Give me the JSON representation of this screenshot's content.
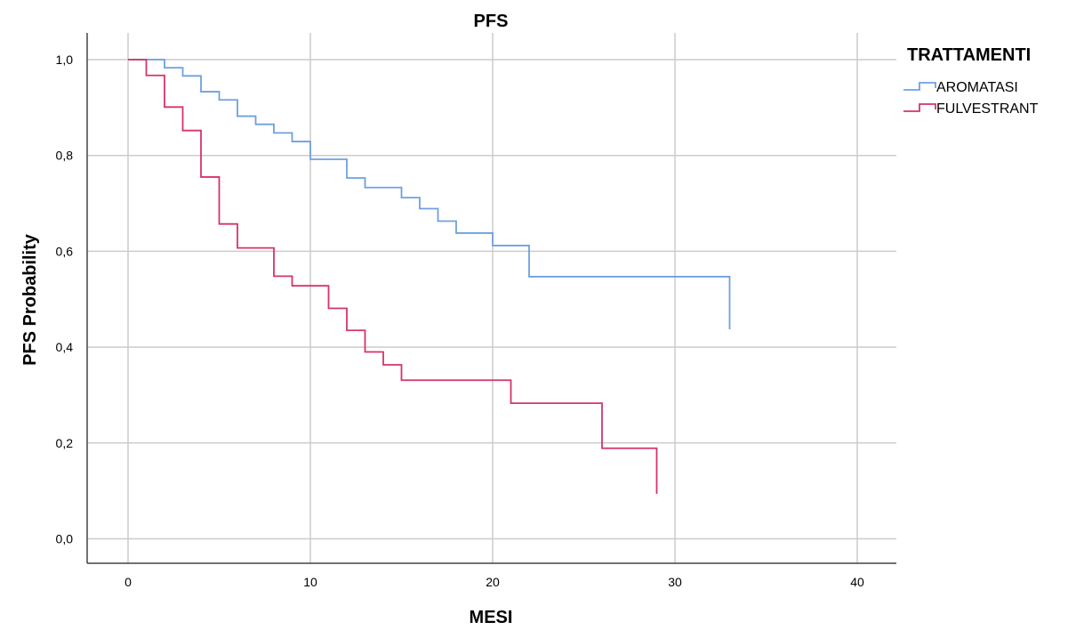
{
  "chart_data": {
    "type": "line",
    "step": true,
    "title": "PFS",
    "xlabel": "MESI",
    "ylabel": "PFS Probability",
    "xlim": [
      -2,
      42
    ],
    "ylim": [
      -0.05,
      1.05
    ],
    "xticks": [
      0,
      10,
      20,
      30,
      40
    ],
    "xtick_labels": [
      "0",
      "10",
      "20",
      "30",
      "40"
    ],
    "yticks": [
      0.0,
      0.2,
      0.4,
      0.6,
      0.8,
      1.0
    ],
    "ytick_labels": [
      "0,0",
      "0,2",
      "0,4",
      "0,6",
      "0,8",
      "1,0"
    ],
    "grid": true,
    "legend": {
      "title": "TRATTAMENTI",
      "position": "top-right"
    },
    "series": [
      {
        "name": "AROMATASI",
        "color": "#6fa0e0",
        "points": [
          [
            0,
            1.0
          ],
          [
            2,
            0.983
          ],
          [
            3,
            0.966
          ],
          [
            4,
            0.933
          ],
          [
            5,
            0.916
          ],
          [
            6,
            0.882
          ],
          [
            7,
            0.865
          ],
          [
            8,
            0.847
          ],
          [
            9,
            0.829
          ],
          [
            10,
            0.792
          ],
          [
            12,
            0.753
          ],
          [
            13,
            0.733
          ],
          [
            15,
            0.712
          ],
          [
            16,
            0.689
          ],
          [
            17,
            0.663
          ],
          [
            18,
            0.638
          ],
          [
            20,
            0.612
          ],
          [
            22,
            0.547
          ],
          [
            33,
            0.547
          ]
        ],
        "final_drop": 0.437
      },
      {
        "name": "FULVESTRANT",
        "color": "#d6336c",
        "points": [
          [
            0,
            1.0
          ],
          [
            1,
            0.967
          ],
          [
            2,
            0.901
          ],
          [
            3,
            0.852
          ],
          [
            4,
            0.755
          ],
          [
            5,
            0.657
          ],
          [
            6,
            0.607
          ],
          [
            8,
            0.548
          ],
          [
            9,
            0.528
          ],
          [
            11,
            0.481
          ],
          [
            12,
            0.435
          ],
          [
            13,
            0.39
          ],
          [
            14,
            0.363
          ],
          [
            15,
            0.331
          ],
          [
            21,
            0.283
          ],
          [
            26,
            0.189
          ],
          [
            29,
            0.189
          ]
        ],
        "final_drop": 0.094
      }
    ]
  }
}
